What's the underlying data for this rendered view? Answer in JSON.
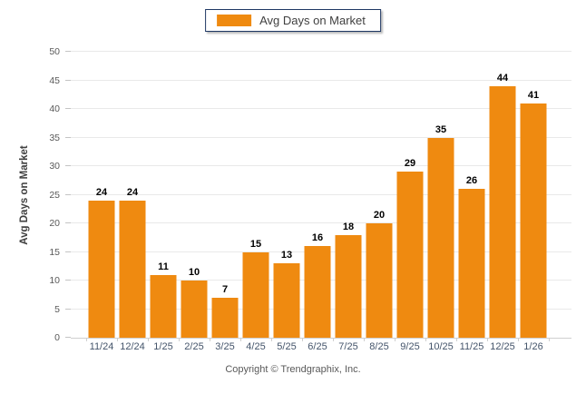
{
  "legend": {
    "label": "Avg Days on Market"
  },
  "footer": {
    "copyright": "Copyright © Trendgraphix, Inc."
  },
  "colors": {
    "bar": "#EF8A10",
    "legend_border": "#1F3864"
  },
  "chart_data": {
    "type": "bar",
    "categories": [
      "11/24",
      "12/24",
      "1/25",
      "2/25",
      "3/25",
      "4/25",
      "5/25",
      "6/25",
      "7/25",
      "8/25",
      "9/25",
      "10/25",
      "11/25",
      "12/25",
      "1/26"
    ],
    "values": [
      24,
      24,
      11,
      10,
      7,
      15,
      13,
      16,
      18,
      20,
      29,
      35,
      26,
      44,
      41
    ],
    "title": "",
    "xlabel": "",
    "ylabel": "Avg Days on Market",
    "ylim": [
      0,
      50
    ],
    "ytick_step": 5,
    "grid": true,
    "legend_entries": [
      "Avg Days on Market"
    ],
    "legend_position": "top-center",
    "bar_color": "#EF8A10",
    "value_labels": true
  }
}
